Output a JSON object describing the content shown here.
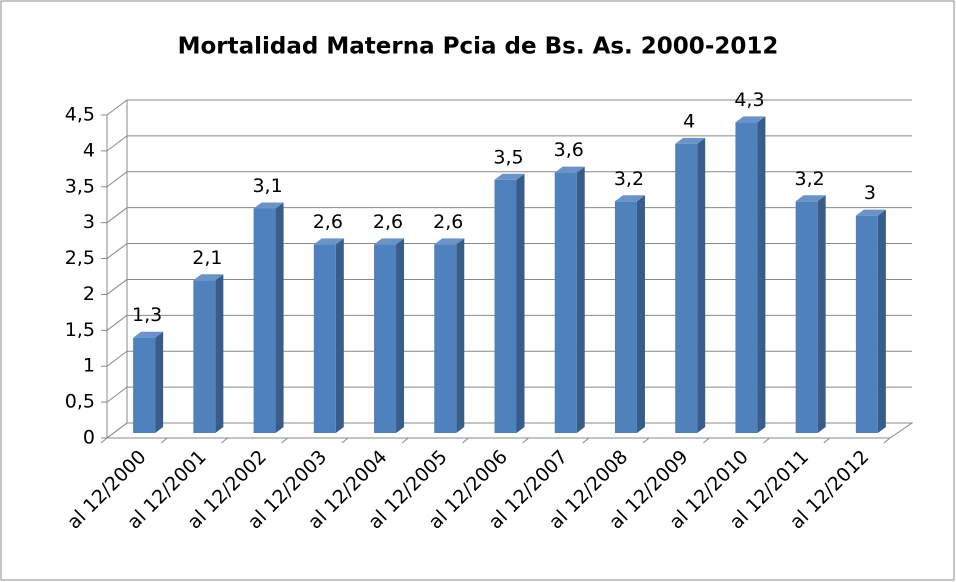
{
  "chart_data": {
    "type": "bar3d",
    "title": "Mortalidad Materna Pcia de Bs. As. 2000-2012",
    "categories": [
      "al 12/2000",
      "al 12/2001",
      "al 12/2002",
      "al 12/2003",
      "al 12/2004",
      "al 12/2005",
      "al 12/2006",
      "al 12/2007",
      "al 12/2008",
      "al 12/2009",
      "al 12/2010",
      "al 12/2011",
      "al 12/2012"
    ],
    "values": [
      1.3,
      2.1,
      3.1,
      2.6,
      2.6,
      2.6,
      3.5,
      3.6,
      3.2,
      4,
      4.3,
      3.2,
      3
    ],
    "value_labels": [
      "1,3",
      "2,1",
      "3,1",
      "2,6",
      "2,6",
      "2,6",
      "3,5",
      "3,6",
      "3,2",
      "4",
      "4,3",
      "3,2",
      "3"
    ],
    "color": "#4f81bd",
    "ylim": [
      0,
      4.5
    ],
    "yticks": [
      0,
      {
        "value": 0.5,
        "label": "0,5"
      },
      1,
      {
        "value": 1.5,
        "label": "1,5"
      },
      2,
      {
        "value": 2.5,
        "label": "2,5"
      },
      3,
      {
        "value": 3.5,
        "label": "3,5"
      },
      4,
      {
        "value": 4.5,
        "label": "4,5"
      }
    ],
    "grid": true
  }
}
